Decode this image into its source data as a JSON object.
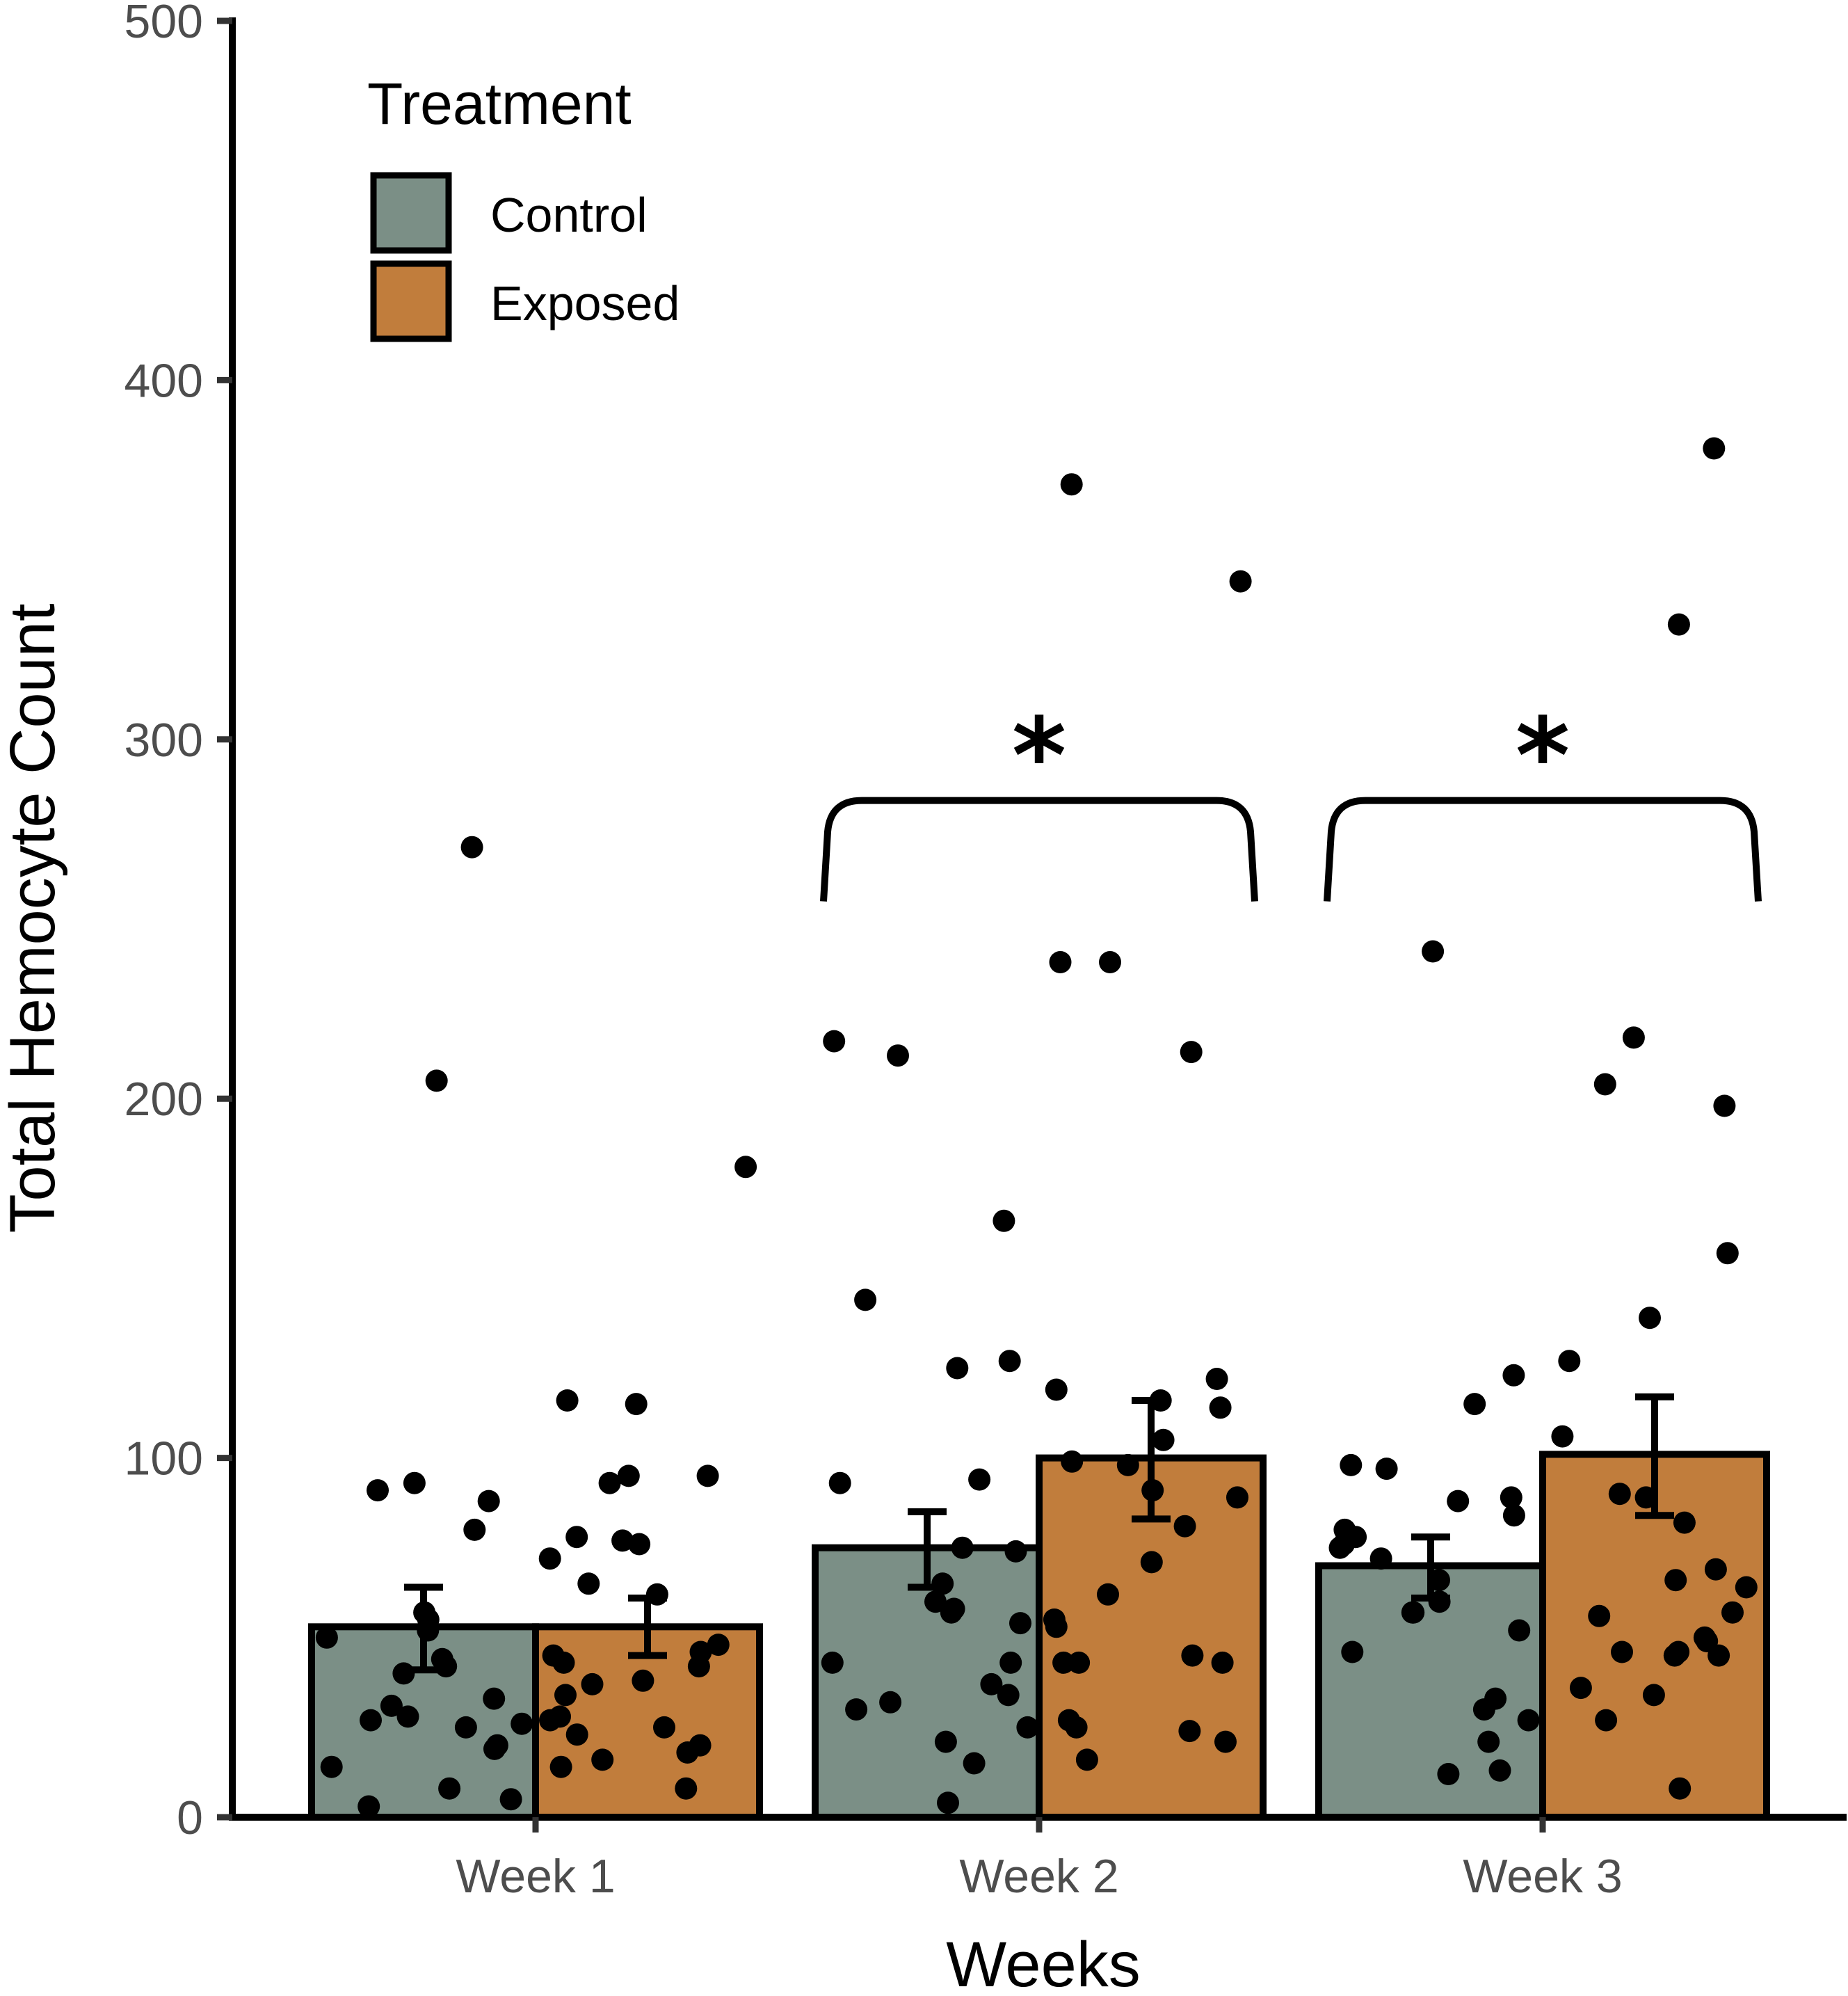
{
  "chart_data": {
    "type": "bar",
    "title": "",
    "xlabel": "Weeks",
    "ylabel": "Total Hemocyte Count",
    "ylim": [
      0,
      500
    ],
    "yticks": [
      0,
      100,
      200,
      300,
      400,
      500
    ],
    "categories": [
      "Week 1",
      "Week 2",
      "Week 3"
    ],
    "legend": {
      "title": "Treatment",
      "placement": "top-left"
    },
    "series": [
      {
        "name": "Control",
        "color": "#7b8f86",
        "values": [
          53,
          75,
          70
        ],
        "error_low": [
          41,
          64,
          61
        ],
        "error_high": [
          64,
          85,
          78
        ],
        "points": [
          [
            270,
            205,
            93,
            91,
            88,
            80,
            57,
            55,
            52,
            50,
            44,
            42,
            40,
            33,
            31,
            28,
            27,
            26,
            25,
            20,
            19,
            14,
            8,
            5,
            3
          ],
          [
            216,
            212,
            166,
            144,
            127,
            125,
            94,
            93,
            75,
            74,
            65,
            60,
            58,
            57,
            54,
            43,
            43,
            37,
            34,
            32,
            30,
            25,
            21,
            15,
            4
          ],
          [
            241,
            123,
            115,
            98,
            97,
            89,
            88,
            84,
            80,
            78,
            76,
            75,
            72,
            66,
            60,
            57,
            57,
            52,
            46,
            33,
            30,
            27,
            21,
            13,
            12
          ]
        ]
      },
      {
        "name": "Exposed",
        "color": "#c17d3c",
        "values": [
          53,
          100,
          101
        ],
        "error_low": [
          45,
          83,
          84
        ],
        "error_high": [
          61,
          116,
          117
        ],
        "points": [
          [
            181,
            116,
            115,
            95,
            95,
            93,
            78,
            77,
            76,
            72,
            65,
            62,
            48,
            46,
            45,
            43,
            42,
            38,
            37,
            34,
            28,
            27,
            25,
            23,
            20,
            18,
            16,
            14,
            8
          ],
          [
            371,
            344,
            238,
            238,
            213,
            122,
            119,
            116,
            114,
            105,
            99,
            98,
            91,
            89,
            81,
            71,
            62,
            55,
            53,
            45,
            43,
            43,
            43,
            27,
            25,
            24,
            21,
            16
          ],
          [
            381,
            332,
            217,
            204,
            198,
            157,
            139,
            127,
            106,
            90,
            89,
            82,
            69,
            66,
            64,
            57,
            56,
            50,
            49,
            46,
            46,
            45,
            45,
            36,
            34,
            27,
            8
          ]
        ]
      }
    ],
    "annotations": [
      {
        "label": "*",
        "span": [
          "Week 2 Control",
          "Week 2 Exposed"
        ],
        "y": 283
      },
      {
        "label": "*",
        "span": [
          "Week 3 Control",
          "Week 3 Exposed"
        ],
        "y": 283
      }
    ]
  }
}
